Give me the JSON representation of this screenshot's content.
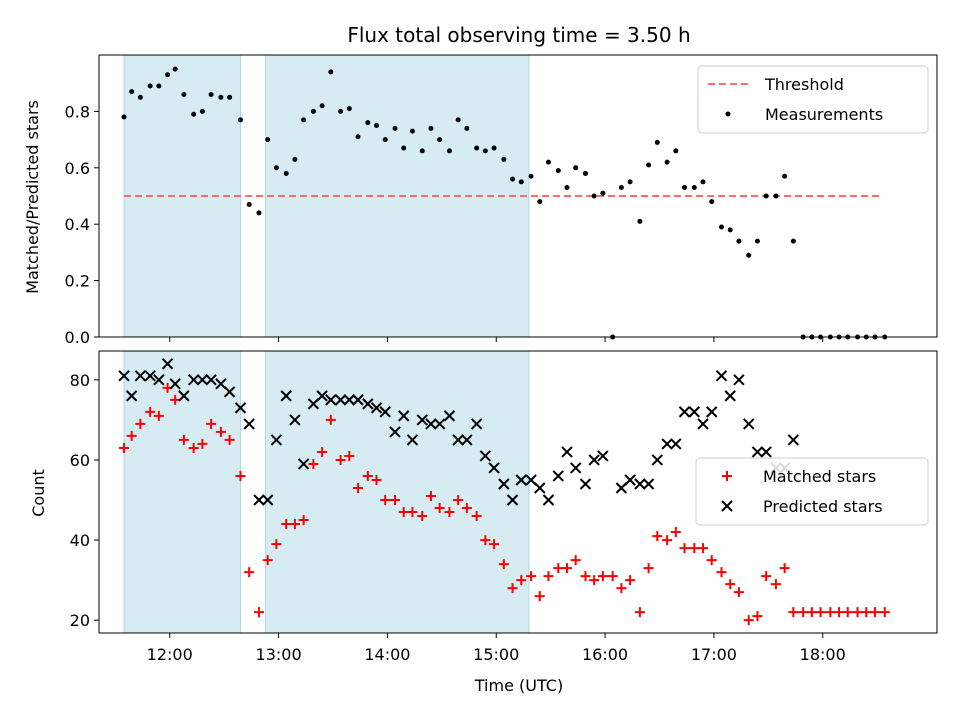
{
  "title": "Flux total observing time = 3.50 h",
  "colors": {
    "threshold": "#ff6b6b",
    "measurements": "#000000",
    "matched": "#ff0000",
    "predicted": "#000000",
    "shade": "#add8e6"
  },
  "chart_data": [
    {
      "type": "scatter",
      "ylabel": "Matched/Predicted stars",
      "ylim": [
        0,
        1.0
      ],
      "xlim": [
        11.35,
        19.05
      ],
      "yticks": [
        0.0,
        0.2,
        0.4,
        0.6,
        0.8
      ],
      "ytick_labels": [
        "0.0",
        "0.2",
        "0.4",
        "0.6",
        "0.8"
      ],
      "legend_position": "upper right",
      "shaded_intervals": [
        [
          11.58,
          12.65
        ],
        [
          12.88,
          15.3
        ]
      ],
      "threshold": {
        "name": "Threshold",
        "y": 0.5,
        "x": [
          11.58,
          18.55
        ]
      },
      "series": [
        {
          "name": "Measurements",
          "points": [
            [
              11.58,
              0.78
            ],
            [
              11.65,
              0.87
            ],
            [
              11.73,
              0.85
            ],
            [
              11.82,
              0.89
            ],
            [
              11.9,
              0.89
            ],
            [
              11.98,
              0.93
            ],
            [
              12.05,
              0.95
            ],
            [
              12.13,
              0.86
            ],
            [
              12.22,
              0.79
            ],
            [
              12.3,
              0.8
            ],
            [
              12.38,
              0.86
            ],
            [
              12.47,
              0.85
            ],
            [
              12.55,
              0.85
            ],
            [
              12.65,
              0.77
            ],
            [
              12.73,
              0.47
            ],
            [
              12.82,
              0.44
            ],
            [
              12.9,
              0.7
            ],
            [
              12.98,
              0.6
            ],
            [
              13.07,
              0.58
            ],
            [
              13.15,
              0.63
            ],
            [
              13.23,
              0.77
            ],
            [
              13.32,
              0.8
            ],
            [
              13.4,
              0.82
            ],
            [
              13.48,
              0.94
            ],
            [
              13.57,
              0.8
            ],
            [
              13.65,
              0.81
            ],
            [
              13.73,
              0.71
            ],
            [
              13.82,
              0.76
            ],
            [
              13.9,
              0.75
            ],
            [
              13.98,
              0.7
            ],
            [
              14.07,
              0.74
            ],
            [
              14.15,
              0.67
            ],
            [
              14.23,
              0.73
            ],
            [
              14.32,
              0.66
            ],
            [
              14.4,
              0.74
            ],
            [
              14.48,
              0.7
            ],
            [
              14.57,
              0.66
            ],
            [
              14.65,
              0.77
            ],
            [
              14.73,
              0.74
            ],
            [
              14.82,
              0.67
            ],
            [
              14.9,
              0.66
            ],
            [
              14.98,
              0.67
            ],
            [
              15.07,
              0.63
            ],
            [
              15.15,
              0.56
            ],
            [
              15.23,
              0.55
            ],
            [
              15.32,
              0.57
            ],
            [
              15.4,
              0.48
            ],
            [
              15.48,
              0.62
            ],
            [
              15.57,
              0.59
            ],
            [
              15.65,
              0.53
            ],
            [
              15.73,
              0.6
            ],
            [
              15.82,
              0.58
            ],
            [
              15.9,
              0.5
            ],
            [
              15.98,
              0.51
            ],
            [
              16.07,
              0.0
            ],
            [
              16.15,
              0.53
            ],
            [
              16.23,
              0.55
            ],
            [
              16.32,
              0.41
            ],
            [
              16.4,
              0.61
            ],
            [
              16.48,
              0.69
            ],
            [
              16.57,
              0.62
            ],
            [
              16.65,
              0.66
            ],
            [
              16.73,
              0.53
            ],
            [
              16.82,
              0.53
            ],
            [
              16.9,
              0.55
            ],
            [
              16.98,
              0.48
            ],
            [
              17.07,
              0.39
            ],
            [
              17.15,
              0.38
            ],
            [
              17.23,
              0.34
            ],
            [
              17.32,
              0.29
            ],
            [
              17.4,
              0.34
            ],
            [
              17.48,
              0.5
            ],
            [
              17.57,
              0.5
            ],
            [
              17.65,
              0.57
            ],
            [
              17.73,
              0.34
            ],
            [
              17.82,
              0.0
            ],
            [
              17.9,
              0.0
            ],
            [
              17.98,
              0.0
            ],
            [
              18.07,
              0.0
            ],
            [
              18.15,
              0.0
            ],
            [
              18.23,
              0.0
            ],
            [
              18.32,
              0.0
            ],
            [
              18.4,
              0.0
            ],
            [
              18.48,
              0.0
            ],
            [
              18.57,
              0.0
            ]
          ]
        }
      ]
    },
    {
      "type": "scatter",
      "xlabel": "Time (UTC)",
      "ylabel": "Count",
      "ylim": [
        16.8,
        87.2
      ],
      "xlim": [
        11.35,
        19.05
      ],
      "yticks": [
        20,
        40,
        60,
        80
      ],
      "ytick_labels": [
        "20",
        "40",
        "60",
        "80"
      ],
      "xticks": [
        12,
        13,
        14,
        15,
        16,
        17,
        18
      ],
      "xtick_labels": [
        "12:00",
        "13:00",
        "14:00",
        "15:00",
        "16:00",
        "17:00",
        "18:00"
      ],
      "legend_position": "center right",
      "shaded_intervals": [
        [
          11.58,
          12.65
        ],
        [
          12.88,
          15.3
        ]
      ],
      "series": [
        {
          "name": "Matched stars",
          "marker": "plus",
          "points": [
            [
              11.58,
              63
            ],
            [
              11.65,
              66
            ],
            [
              11.73,
              69
            ],
            [
              11.82,
              72
            ],
            [
              11.9,
              71
            ],
            [
              11.98,
              78
            ],
            [
              12.05,
              75
            ],
            [
              12.13,
              65
            ],
            [
              12.22,
              63
            ],
            [
              12.3,
              64
            ],
            [
              12.38,
              69
            ],
            [
              12.47,
              67
            ],
            [
              12.55,
              65
            ],
            [
              12.65,
              56
            ],
            [
              12.73,
              32
            ],
            [
              12.82,
              22
            ],
            [
              12.9,
              35
            ],
            [
              12.98,
              39
            ],
            [
              13.07,
              44
            ],
            [
              13.15,
              44
            ],
            [
              13.23,
              45
            ],
            [
              13.32,
              59
            ],
            [
              13.4,
              62
            ],
            [
              13.48,
              70
            ],
            [
              13.57,
              60
            ],
            [
              13.65,
              61
            ],
            [
              13.73,
              53
            ],
            [
              13.82,
              56
            ],
            [
              13.9,
              55
            ],
            [
              13.98,
              50
            ],
            [
              14.07,
              50
            ],
            [
              14.15,
              47
            ],
            [
              14.23,
              47
            ],
            [
              14.32,
              46
            ],
            [
              14.4,
              51
            ],
            [
              14.48,
              48
            ],
            [
              14.57,
              47
            ],
            [
              14.65,
              50
            ],
            [
              14.73,
              48
            ],
            [
              14.82,
              46
            ],
            [
              14.9,
              40
            ],
            [
              14.98,
              39
            ],
            [
              15.07,
              34
            ],
            [
              15.15,
              28
            ],
            [
              15.23,
              30
            ],
            [
              15.32,
              31
            ],
            [
              15.4,
              26
            ],
            [
              15.48,
              31
            ],
            [
              15.57,
              33
            ],
            [
              15.65,
              33
            ],
            [
              15.73,
              35
            ],
            [
              15.82,
              31
            ],
            [
              15.9,
              30
            ],
            [
              15.98,
              31
            ],
            [
              16.07,
              31
            ],
            [
              16.15,
              28
            ],
            [
              16.23,
              30
            ],
            [
              16.32,
              22
            ],
            [
              16.4,
              33
            ],
            [
              16.48,
              41
            ],
            [
              16.57,
              40
            ],
            [
              16.65,
              42
            ],
            [
              16.73,
              38
            ],
            [
              16.82,
              38
            ],
            [
              16.9,
              38
            ],
            [
              16.98,
              35
            ],
            [
              17.07,
              32
            ],
            [
              17.15,
              29
            ],
            [
              17.23,
              27
            ],
            [
              17.32,
              20
            ],
            [
              17.4,
              21
            ],
            [
              17.48,
              31
            ],
            [
              17.57,
              29
            ],
            [
              17.65,
              33
            ],
            [
              17.73,
              22
            ],
            [
              17.82,
              22
            ],
            [
              17.9,
              22
            ],
            [
              17.98,
              22
            ],
            [
              18.07,
              22
            ],
            [
              18.15,
              22
            ],
            [
              18.23,
              22
            ],
            [
              18.32,
              22
            ],
            [
              18.4,
              22
            ],
            [
              18.48,
              22
            ],
            [
              18.57,
              22
            ]
          ]
        },
        {
          "name": "Predicted stars",
          "marker": "x",
          "points": [
            [
              11.58,
              81
            ],
            [
              11.65,
              76
            ],
            [
              11.73,
              81
            ],
            [
              11.82,
              81
            ],
            [
              11.9,
              80
            ],
            [
              11.98,
              84
            ],
            [
              12.05,
              79
            ],
            [
              12.13,
              76
            ],
            [
              12.22,
              80
            ],
            [
              12.3,
              80
            ],
            [
              12.38,
              80
            ],
            [
              12.47,
              79
            ],
            [
              12.55,
              77
            ],
            [
              12.65,
              73
            ],
            [
              12.73,
              69
            ],
            [
              12.82,
              50
            ],
            [
              12.9,
              50
            ],
            [
              12.98,
              65
            ],
            [
              13.07,
              76
            ],
            [
              13.15,
              70
            ],
            [
              13.23,
              59
            ],
            [
              13.32,
              74
            ],
            [
              13.4,
              76
            ],
            [
              13.48,
              75
            ],
            [
              13.57,
              75
            ],
            [
              13.65,
              75
            ],
            [
              13.73,
              75
            ],
            [
              13.82,
              74
            ],
            [
              13.9,
              73
            ],
            [
              13.98,
              72
            ],
            [
              14.07,
              67
            ],
            [
              14.15,
              71
            ],
            [
              14.23,
              65
            ],
            [
              14.32,
              70
            ],
            [
              14.4,
              69
            ],
            [
              14.48,
              69
            ],
            [
              14.57,
              71
            ],
            [
              14.65,
              65
            ],
            [
              14.73,
              65
            ],
            [
              14.82,
              69
            ],
            [
              14.9,
              61
            ],
            [
              14.98,
              58
            ],
            [
              15.07,
              54
            ],
            [
              15.15,
              50
            ],
            [
              15.23,
              55
            ],
            [
              15.32,
              55
            ],
            [
              15.4,
              53
            ],
            [
              15.48,
              50
            ],
            [
              15.57,
              56
            ],
            [
              15.65,
              62
            ],
            [
              15.73,
              58
            ],
            [
              15.82,
              54
            ],
            [
              15.9,
              60
            ],
            [
              15.98,
              61
            ],
            [
              16.15,
              53
            ],
            [
              16.23,
              55
            ],
            [
              16.32,
              54
            ],
            [
              16.4,
              54
            ],
            [
              16.48,
              60
            ],
            [
              16.57,
              64
            ],
            [
              16.65,
              64
            ],
            [
              16.73,
              72
            ],
            [
              16.82,
              72
            ],
            [
              16.9,
              69
            ],
            [
              16.98,
              72
            ],
            [
              17.07,
              81
            ],
            [
              17.15,
              76
            ],
            [
              17.23,
              80
            ],
            [
              17.32,
              69
            ],
            [
              17.4,
              62
            ],
            [
              17.48,
              62
            ],
            [
              17.57,
              58
            ],
            [
              17.65,
              58
            ],
            [
              17.73,
              65
            ]
          ]
        }
      ]
    }
  ]
}
